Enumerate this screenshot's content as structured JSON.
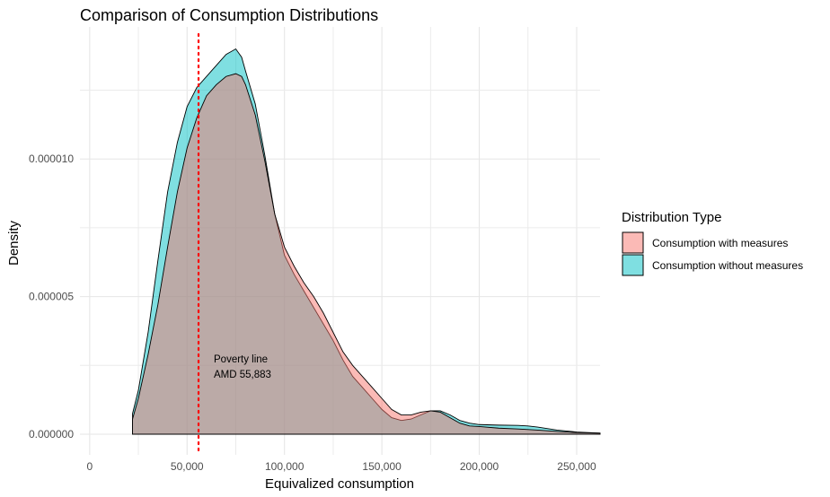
{
  "chart_data": {
    "type": "area",
    "title": "Comparison of Consumption Distributions",
    "xlabel": "Equivalized consumption",
    "ylabel": "Density",
    "xlim": [
      -5000,
      262000
    ],
    "ylim": [
      -7.5e-07,
      1.48e-05
    ],
    "x_ticks": [
      0,
      50000,
      100000,
      150000,
      200000,
      250000
    ],
    "x_tick_labels": [
      "0",
      "50,000",
      "100,000",
      "150,000",
      "200,000",
      "250,000"
    ],
    "y_ticks": [
      0,
      5e-06,
      1e-05
    ],
    "y_tick_labels": [
      "0.000000",
      "0.000005",
      "0.000010"
    ],
    "grid": true,
    "legend": {
      "title": "Distribution Type",
      "placement": "right"
    },
    "series": [
      {
        "name": "Consumption with measures",
        "color": "#F8766D",
        "x": [
          22000,
          25000,
          30000,
          35000,
          40000,
          45000,
          50000,
          55000,
          60000,
          65000,
          70000,
          75000,
          78000,
          80000,
          85000,
          90000,
          95000,
          100000,
          105000,
          110000,
          115000,
          120000,
          125000,
          130000,
          135000,
          140000,
          145000,
          150000,
          155000,
          160000,
          165000,
          170000,
          175000,
          180000,
          185000,
          190000,
          195000,
          200000,
          210000,
          220000,
          225000,
          230000,
          240000,
          250000,
          262000
        ],
        "y": [
          5.5e-07,
          1.3e-06,
          2.9e-06,
          4.7e-06,
          6.8e-06,
          8.8e-06,
          1.04e-05,
          1.15e-05,
          1.23e-05,
          1.27e-05,
          1.3e-05,
          1.31e-05,
          1.3e-05,
          1.27e-05,
          1.16e-05,
          9.9e-06,
          8e-06,
          6.8e-06,
          6.1e-06,
          5.5e-06,
          5e-06,
          4.4e-06,
          3.7e-06,
          3e-06,
          2.5e-06,
          2.1e-06,
          1.7e-06,
          1.3e-06,
          9e-07,
          7e-07,
          7e-07,
          8e-07,
          8.5e-07,
          8e-07,
          6e-07,
          4e-07,
          3e-07,
          2.8e-07,
          2.2e-07,
          1.9e-07,
          1.7e-07,
          1.5e-07,
          1e-07,
          6e-08,
          4e-08
        ]
      },
      {
        "name": "Consumption without measures",
        "color": "#00BFC4",
        "x": [
          22000,
          25000,
          30000,
          35000,
          40000,
          45000,
          50000,
          55000,
          60000,
          65000,
          70000,
          75000,
          78000,
          80000,
          85000,
          90000,
          95000,
          100000,
          105000,
          110000,
          115000,
          120000,
          125000,
          130000,
          135000,
          140000,
          145000,
          150000,
          155000,
          160000,
          165000,
          170000,
          175000,
          180000,
          185000,
          190000,
          195000,
          200000,
          210000,
          220000,
          225000,
          230000,
          240000,
          250000,
          262000
        ],
        "y": [
          7.5e-07,
          1.6e-06,
          3.7e-06,
          6.3e-06,
          8.8e-06,
          1.06e-05,
          1.19e-05,
          1.26e-05,
          1.3e-05,
          1.34e-05,
          1.38e-05,
          1.4e-05,
          1.37e-05,
          1.32e-05,
          1.2e-05,
          1.01e-05,
          8e-06,
          6.5e-06,
          5.8e-06,
          5.2e-06,
          4.6e-06,
          4e-06,
          3.4e-06,
          2.7e-06,
          2.1e-06,
          1.7e-06,
          1.3e-06,
          9e-07,
          6e-07,
          5e-07,
          5.5e-07,
          7e-07,
          8.5e-07,
          8.5e-07,
          7e-07,
          5e-07,
          4e-07,
          3.5e-07,
          3.3e-07,
          3.2e-07,
          3e-07,
          2.6e-07,
          1.5e-07,
          8e-08,
          4e-08
        ]
      }
    ],
    "reference_line": {
      "x": 55883,
      "color": "#FF0000",
      "style": "dotted",
      "label_line1": "Poverty line",
      "label_line2": "AMD 55,883"
    }
  }
}
